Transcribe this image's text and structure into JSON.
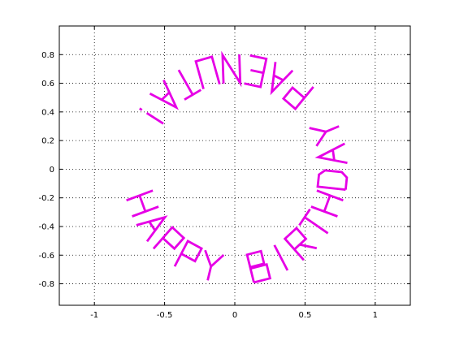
{
  "chart_data": {
    "type": "line",
    "title": "",
    "xlabel": "",
    "ylabel": "",
    "xlim": [
      -1.25,
      1.25
    ],
    "ylim": [
      -0.95,
      1.0
    ],
    "grid": true,
    "series_color": "#e600e6",
    "x_ticks": [
      -1,
      -0.5,
      0,
      0.5,
      1
    ],
    "x_tick_labels": [
      "-1",
      "-0.5",
      "0",
      "0.5",
      "1"
    ],
    "y_ticks": [
      -0.8,
      -0.6,
      -0.4,
      -0.2,
      0,
      0.2,
      0.4,
      0.6,
      0.8
    ],
    "y_tick_labels": [
      "-0.8",
      "-0.6",
      "-0.4",
      "-0.2",
      "0",
      "0.2",
      "0.4",
      "0.6",
      "0.8"
    ],
    "text_ring": {
      "text": "HAPPY BIRTHDAY PAENUTA!",
      "center": [
        0,
        0
      ],
      "radius": 0.8,
      "letters": [
        {
          "char": "H",
          "angle_deg": 200
        },
        {
          "char": "A",
          "angle_deg": 214
        },
        {
          "char": "P",
          "angle_deg": 228
        },
        {
          "char": "P",
          "angle_deg": 242
        },
        {
          "char": "Y",
          "angle_deg": 256
        },
        {
          "char": "B",
          "angle_deg": 284
        },
        {
          "char": "I",
          "angle_deg": 298
        },
        {
          "char": "R",
          "angle_deg": 312
        },
        {
          "char": "T",
          "angle_deg": 326
        },
        {
          "char": "H",
          "angle_deg": 340
        },
        {
          "char": "D",
          "angle_deg": 354
        },
        {
          "char": "A",
          "angle_deg": 8
        },
        {
          "char": "Y",
          "angle_deg": 22
        },
        {
          "char": "P",
          "angle_deg": 50
        },
        {
          "char": "A",
          "angle_deg": 64
        },
        {
          "char": "E",
          "angle_deg": 78
        },
        {
          "char": "N",
          "angle_deg": 92
        },
        {
          "char": "U",
          "angle_deg": 106
        },
        {
          "char": "T",
          "angle_deg": 120
        },
        {
          "char": "A",
          "angle_deg": 134
        },
        {
          "char": "!",
          "angle_deg": 148
        }
      ]
    }
  }
}
